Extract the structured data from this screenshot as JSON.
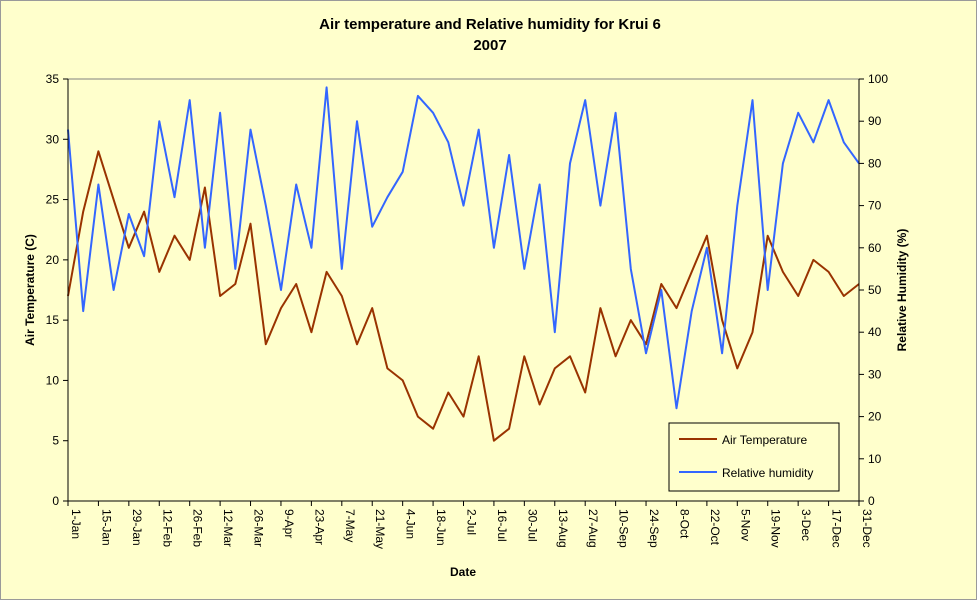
{
  "chart_data": {
    "type": "line",
    "title": "Air temperature and Relative humidity for Krui 6",
    "subtitle": "2007",
    "xlabel": "Date",
    "ylabel_left": "Air Temperature (C)",
    "ylabel_right": "Relative Humidity (%)",
    "ylim_left": [
      0,
      35
    ],
    "ylim_right": [
      0,
      100
    ],
    "yticks_left": [
      "0",
      "5",
      "10",
      "15",
      "20",
      "25",
      "30",
      "35"
    ],
    "yticks_right": [
      "0",
      "10",
      "20",
      "30",
      "40",
      "50",
      "60",
      "70",
      "80",
      "90",
      "100"
    ],
    "xticks": [
      "1-Jan",
      "15-Jan",
      "29-Jan",
      "12-Feb",
      "26-Feb",
      "12-Mar",
      "26-Mar",
      "9-Apr",
      "23-Apr",
      "7-May",
      "21-May",
      "4-Jun",
      "18-Jun",
      "2-Jul",
      "16-Jul",
      "30-Jul",
      "13-Aug",
      "27-Aug",
      "10-Sep",
      "24-Sep",
      "8-Oct",
      "22-Oct",
      "5-Nov",
      "19-Nov",
      "3-Dec",
      "17-Dec",
      "31-Dec"
    ],
    "grid": false,
    "legend_position": "bottom-right",
    "series": [
      {
        "name": "Air Temperature",
        "axis": "left",
        "color": "#993300",
        "x": [
          "1-Jan",
          "8-Jan",
          "15-Jan",
          "22-Jan",
          "29-Jan",
          "5-Feb",
          "12-Feb",
          "19-Feb",
          "26-Feb",
          "5-Mar",
          "12-Mar",
          "19-Mar",
          "26-Mar",
          "2-Apr",
          "9-Apr",
          "16-Apr",
          "23-Apr",
          "30-Apr",
          "7-May",
          "14-May",
          "21-May",
          "28-May",
          "4-Jun",
          "11-Jun",
          "18-Jun",
          "25-Jun",
          "2-Jul",
          "9-Jul",
          "16-Jul",
          "23-Jul",
          "30-Jul",
          "6-Aug",
          "13-Aug",
          "20-Aug",
          "27-Aug",
          "3-Sep",
          "10-Sep",
          "17-Sep",
          "24-Sep",
          "1-Oct",
          "8-Oct",
          "15-Oct",
          "22-Oct",
          "29-Oct",
          "5-Nov",
          "12-Nov",
          "19-Nov",
          "26-Nov",
          "3-Dec",
          "10-Dec",
          "17-Dec",
          "24-Dec",
          "31-Dec"
        ],
        "values": [
          17,
          24,
          29,
          25,
          21,
          24,
          19,
          22,
          20,
          26,
          17,
          18,
          23,
          13,
          16,
          18,
          14,
          19,
          17,
          13,
          16,
          11,
          10,
          7,
          6,
          9,
          7,
          12,
          5,
          6,
          12,
          8,
          11,
          12,
          9,
          16,
          12,
          15,
          13,
          18,
          16,
          19,
          22,
          15,
          11,
          14,
          22,
          19,
          17,
          20,
          19,
          17,
          18
        ]
      },
      {
        "name": "Relative humidity",
        "axis": "right",
        "color": "#3366ff",
        "x": [
          "1-Jan",
          "8-Jan",
          "15-Jan",
          "22-Jan",
          "29-Jan",
          "5-Feb",
          "12-Feb",
          "19-Feb",
          "26-Feb",
          "5-Mar",
          "12-Mar",
          "19-Mar",
          "26-Mar",
          "2-Apr",
          "9-Apr",
          "16-Apr",
          "23-Apr",
          "30-Apr",
          "7-May",
          "14-May",
          "21-May",
          "28-May",
          "4-Jun",
          "11-Jun",
          "18-Jun",
          "25-Jun",
          "2-Jul",
          "9-Jul",
          "16-Jul",
          "23-Jul",
          "30-Jul",
          "6-Aug",
          "13-Aug",
          "20-Aug",
          "27-Aug",
          "3-Sep",
          "10-Sep",
          "17-Sep",
          "24-Sep",
          "1-Oct",
          "8-Oct",
          "15-Oct",
          "22-Oct",
          "29-Oct",
          "5-Nov",
          "12-Nov",
          "19-Nov",
          "26-Nov",
          "3-Dec",
          "10-Dec",
          "17-Dec",
          "24-Dec",
          "31-Dec"
        ],
        "values": [
          88,
          45,
          75,
          50,
          68,
          58,
          90,
          72,
          95,
          60,
          92,
          55,
          88,
          70,
          50,
          75,
          60,
          98,
          55,
          90,
          65,
          72,
          78,
          96,
          92,
          85,
          70,
          88,
          60,
          82,
          55,
          75,
          40,
          80,
          95,
          70,
          92,
          55,
          35,
          50,
          22,
          45,
          60,
          35,
          70,
          95,
          50,
          80,
          92,
          85,
          95,
          85,
          80
        ]
      }
    ]
  }
}
